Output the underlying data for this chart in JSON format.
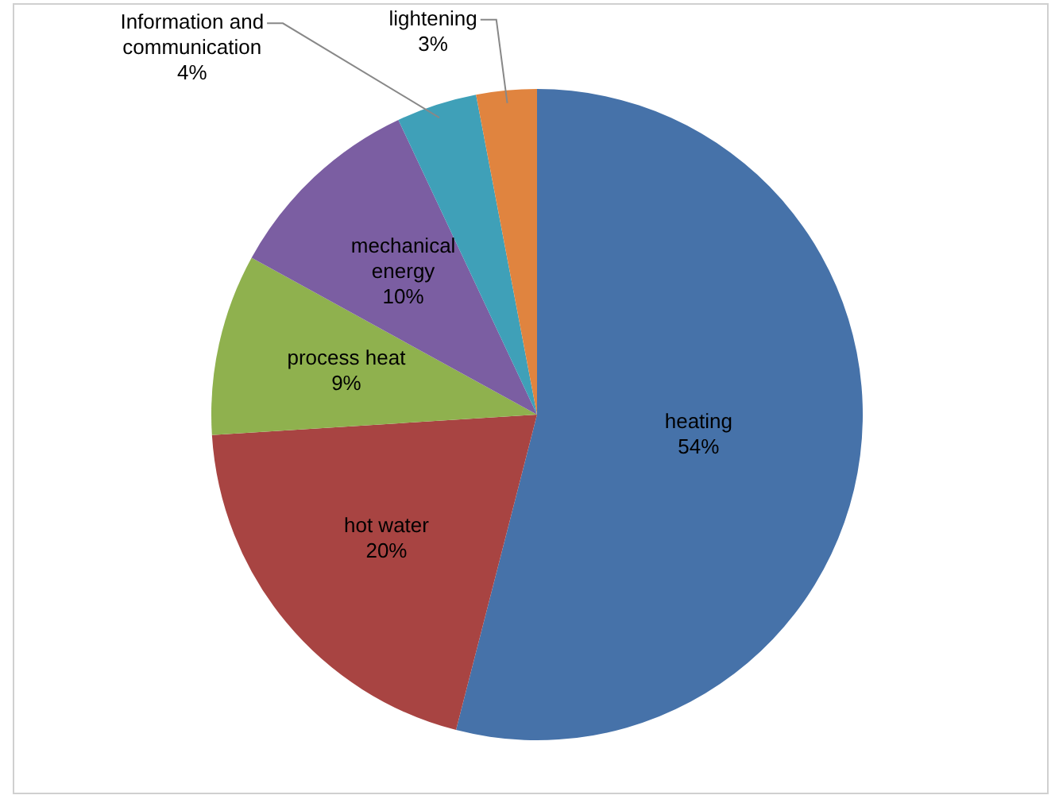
{
  "chart_data": {
    "type": "pie",
    "categories": [
      "heating",
      "hot water",
      "process heat",
      "mechanical energy",
      "Information and communication",
      "lightening"
    ],
    "values": [
      54,
      20,
      9,
      10,
      4,
      3
    ],
    "value_labels": [
      "54%",
      "20%",
      "9%",
      "10%",
      "4%",
      "3%"
    ],
    "colors": [
      "#4672a9",
      "#a84442",
      "#8fb14e",
      "#7b5ea2",
      "#3fa0b8",
      "#e0843f"
    ],
    "legend": false
  }
}
